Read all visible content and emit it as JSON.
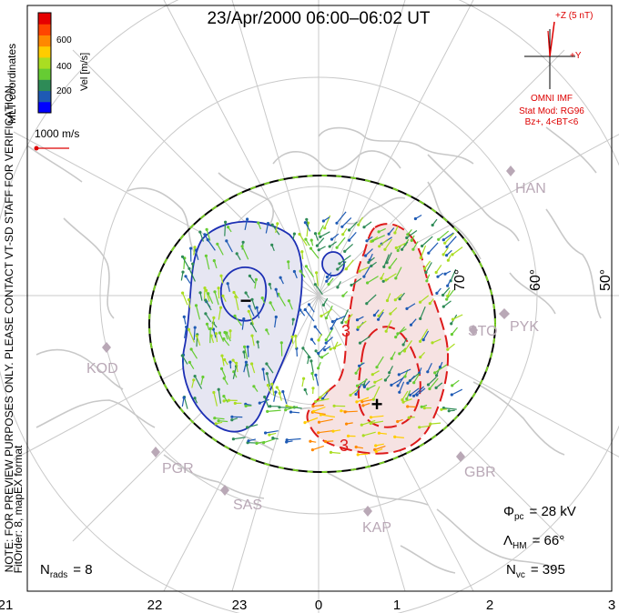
{
  "title": "23/Apr/2000 06:00–06:02 UT",
  "colorbar": {
    "label": "Vel [m/s]",
    "ticks": [
      "600",
      "400",
      "200"
    ],
    "colors": [
      "#0000ff",
      "#1e5ab4",
      "#2e8b57",
      "#66cc33",
      "#aadd22",
      "#ffcc00",
      "#ff8800",
      "#ff4400",
      "#e60000"
    ]
  },
  "coordinates_label": "MLT coordinates",
  "reference_vector": "1000 m/s",
  "imf": {
    "z_label": "+Z (5 nT)",
    "y_label": "+Y",
    "source": "OMNI IMF",
    "model_line1": "Stat Mod: RG96",
    "model_line2": "Bz+, 4<BT<6"
  },
  "latitude_labels": [
    "70°",
    "60°",
    "50°"
  ],
  "stations": [
    "HAN",
    "STO",
    "PYK",
    "KOD",
    "PGR",
    "SAS",
    "KAP",
    "GBR"
  ],
  "potential_markers": {
    "minimum": "−",
    "maximum": "+"
  },
  "contour_labels": [
    "3",
    "3"
  ],
  "stats": {
    "phi_symbol": "Φ",
    "phi_sub": "pc",
    "phi_value": "= 28 kV",
    "lambda_symbol": "Λ",
    "lambda_sub": "HM",
    "lambda_value": "= 66°",
    "nvc_symbol": "N",
    "nvc_sub": "vc",
    "nvc_value": "= 395",
    "nrads_symbol": "N",
    "nrads_sub": "rads",
    "nrads_value": "= 8"
  },
  "side_notes": {
    "line1": "NOTE: FOR PREVIEW PURPOSES ONLY. PLEASE CONTACT VT-SD STAFF FOR VERIFICATION.",
    "line2": "FitOrder: 8, mapEX format"
  },
  "mlt_axis": [
    "21",
    "22",
    "23",
    "0",
    "1",
    "2",
    "3"
  ],
  "colors": {
    "negative_cell_fill": "#e6e6f2",
    "negative_cell_line": "#1c2fb4",
    "positive_cell_fill": "#f6e2e2",
    "positive_cell_line": "#dd1a1a",
    "annotation_red": "#dd0000",
    "station_marker": "#b9a8b6",
    "grid": "#cccccc"
  }
}
